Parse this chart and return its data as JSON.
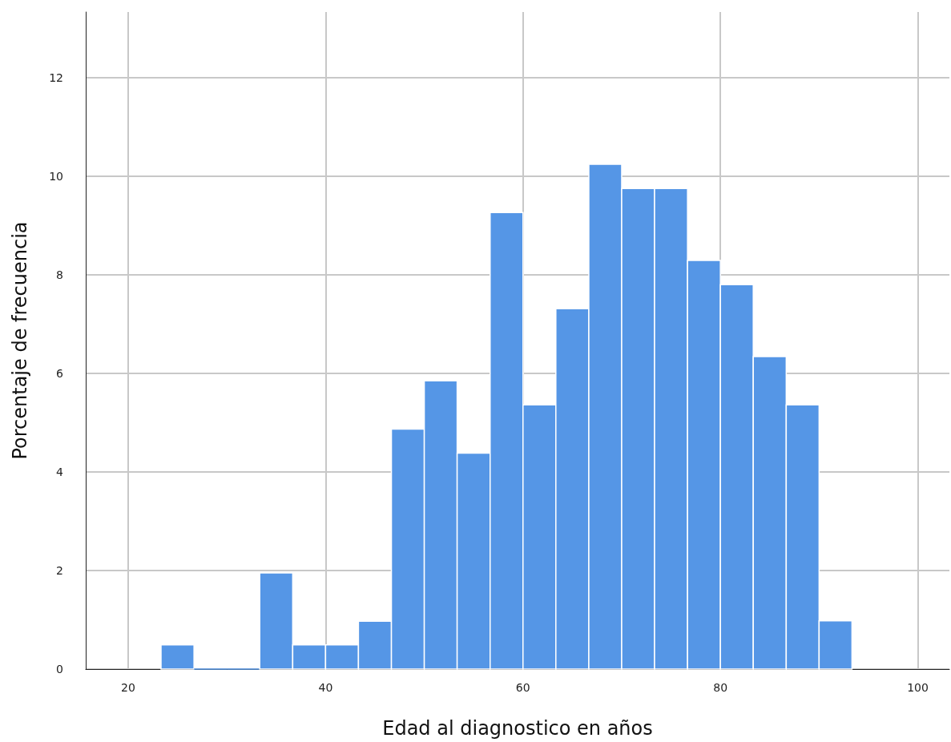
{
  "chart_data": {
    "type": "histogram",
    "xlabel": "Edad al diagnostico en años",
    "ylabel": "Porcentaje de frecuencia",
    "bins": [
      23.33,
      26.67,
      30,
      33.33,
      36.67,
      40,
      43.33,
      46.67,
      50,
      53.33,
      56.67,
      60,
      63.33,
      66.67,
      70,
      73.33,
      76.67,
      80,
      83.33,
      86.67,
      90,
      93.33
    ],
    "values": [
      0.49,
      0,
      0,
      1.95,
      0.49,
      0.49,
      0.97,
      4.87,
      5.85,
      4.38,
      9.26,
      5.36,
      7.31,
      10.24,
      9.75,
      9.75,
      8.29,
      7.8,
      6.34,
      5.36,
      0.98
    ],
    "color": "#5596e6",
    "xlim": [
      15.7,
      103.2
    ],
    "xticks": [
      20,
      40,
      60,
      80,
      100
    ],
    "ylim": [
      0,
      13.33
    ],
    "yticks": [
      0,
      2,
      4,
      6,
      8,
      10,
      12
    ],
    "grid": true
  }
}
